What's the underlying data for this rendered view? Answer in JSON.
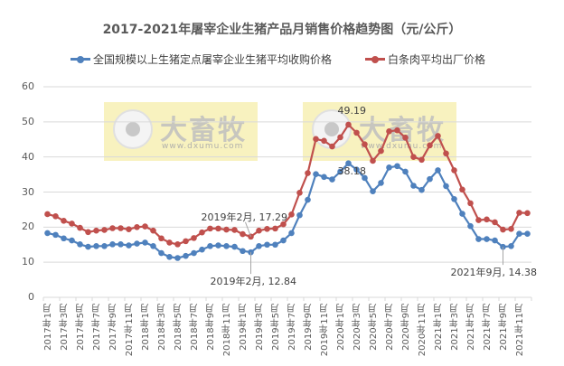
{
  "chart_data": {
    "type": "line",
    "title": "2017-2021年屠宰企业生猪产品月销售价格趋势图（元/公斤）",
    "xlabel": "",
    "ylabel": "",
    "ylim": [
      0,
      60
    ],
    "yticks": [
      0,
      10,
      20,
      30,
      40,
      50,
      60
    ],
    "grid": true,
    "legend_position": "top",
    "x": [
      "2017年1月",
      "2017年2月",
      "2017年3月",
      "2017年4月",
      "2017年5月",
      "2017年6月",
      "2017年7月",
      "2017年8月",
      "2017年9月",
      "2017年10月",
      "2017年11月",
      "2017年12月",
      "2018年1月",
      "2018年2月",
      "2018年3月",
      "2018年4月",
      "2018年5月",
      "2018年6月",
      "2018年7月",
      "2018年8月",
      "2018年9月",
      "2018年10月",
      "2018年11月",
      "2018年12月",
      "2019年1月",
      "2019年2月",
      "2019年3月",
      "2019年4月",
      "2019年5月",
      "2019年6月",
      "2019年7月",
      "2019年8月",
      "2019年9月",
      "2019年10月",
      "2019年11月",
      "2019年12月",
      "2020年1月",
      "2020年2月",
      "2020年3月",
      "2020年4月",
      "2020年5月",
      "2020年6月",
      "2020年7月",
      "2020年8月",
      "2020年9月",
      "2020年10月",
      "2020年11月",
      "2020年12月",
      "2021年1月",
      "2021年2月",
      "2021年3月",
      "2021年4月",
      "2021年5月",
      "2021年6月",
      "2021年7月",
      "2021年8月",
      "2021年9月",
      "2021年10月",
      "2021年11月",
      "2021年12月"
    ],
    "xtick_labels": [
      "2017年1月",
      "2017年3月",
      "2017年5月",
      "2017年7月",
      "2017年9月",
      "2017年11月",
      "2018年1月",
      "2018年3月",
      "2018年5月",
      "2018年7月",
      "2018年9月",
      "2018年11月",
      "2019年1月",
      "2019年3月",
      "2019年5月",
      "2019年7月",
      "2019年9月",
      "2019年11月",
      "2020年1月",
      "2020年3月",
      "2020年5月",
      "2020年7月",
      "2020年9月",
      "2020年11月",
      "2021年1月",
      "2021年3月",
      "2021年5月",
      "2021年7月",
      "2021年9月",
      "2021年11月"
    ],
    "series": [
      {
        "name": "全国规模以上生猪定点屠宰企业生猪平均收购价格",
        "color": "#4F81BD",
        "values": [
          18.3,
          17.8,
          16.8,
          16.2,
          15.1,
          14.4,
          14.6,
          14.6,
          15.1,
          15.1,
          14.8,
          15.3,
          15.6,
          14.6,
          12.6,
          11.5,
          11.2,
          11.8,
          12.6,
          13.6,
          14.6,
          14.8,
          14.6,
          14.4,
          13.2,
          12.84,
          14.6,
          15.0,
          15.0,
          16.2,
          18.3,
          23.4,
          27.8,
          35.1,
          34.3,
          33.6,
          35.8,
          38.18,
          36.4,
          34.0,
          30.2,
          32.6,
          37.0,
          37.4,
          35.8,
          31.8,
          30.6,
          33.7,
          36.2,
          31.7,
          28.0,
          23.8,
          20.3,
          16.6,
          16.6,
          16.2,
          14.38,
          14.6,
          18.1,
          18.1
        ]
      },
      {
        "name": "白条肉平均出厂价格",
        "color": "#C0504D",
        "values": [
          23.7,
          23.1,
          21.8,
          21.0,
          19.8,
          18.6,
          19.0,
          19.2,
          19.7,
          19.7,
          19.4,
          20.0,
          20.2,
          19.0,
          16.8,
          15.6,
          15.1,
          16.0,
          16.9,
          18.5,
          19.6,
          19.6,
          19.3,
          19.2,
          18.0,
          17.29,
          19.0,
          19.5,
          19.6,
          20.8,
          23.6,
          29.8,
          35.4,
          45.1,
          44.6,
          43.0,
          45.6,
          49.19,
          46.9,
          43.6,
          38.9,
          41.7,
          47.3,
          47.6,
          45.5,
          40.0,
          39.2,
          43.3,
          46.0,
          41.0,
          36.2,
          30.7,
          26.8,
          22.0,
          22.2,
          21.4,
          19.3,
          19.5,
          24.1,
          24.0
        ]
      }
    ],
    "annotations": [
      {
        "text": "2019年2月, 17.29",
        "series": 1,
        "index": 25
      },
      {
        "text": "2019年2月, 12.84",
        "series": 0,
        "index": 25
      },
      {
        "text": "49.19",
        "series": 1,
        "index": 37
      },
      {
        "text": "38.18",
        "series": 0,
        "index": 37
      },
      {
        "text": "2021年9月, 14.38",
        "series": 0,
        "index": 56
      }
    ]
  },
  "watermark": {
    "brand": "大畜牧",
    "url": "www.dxumu.com"
  }
}
